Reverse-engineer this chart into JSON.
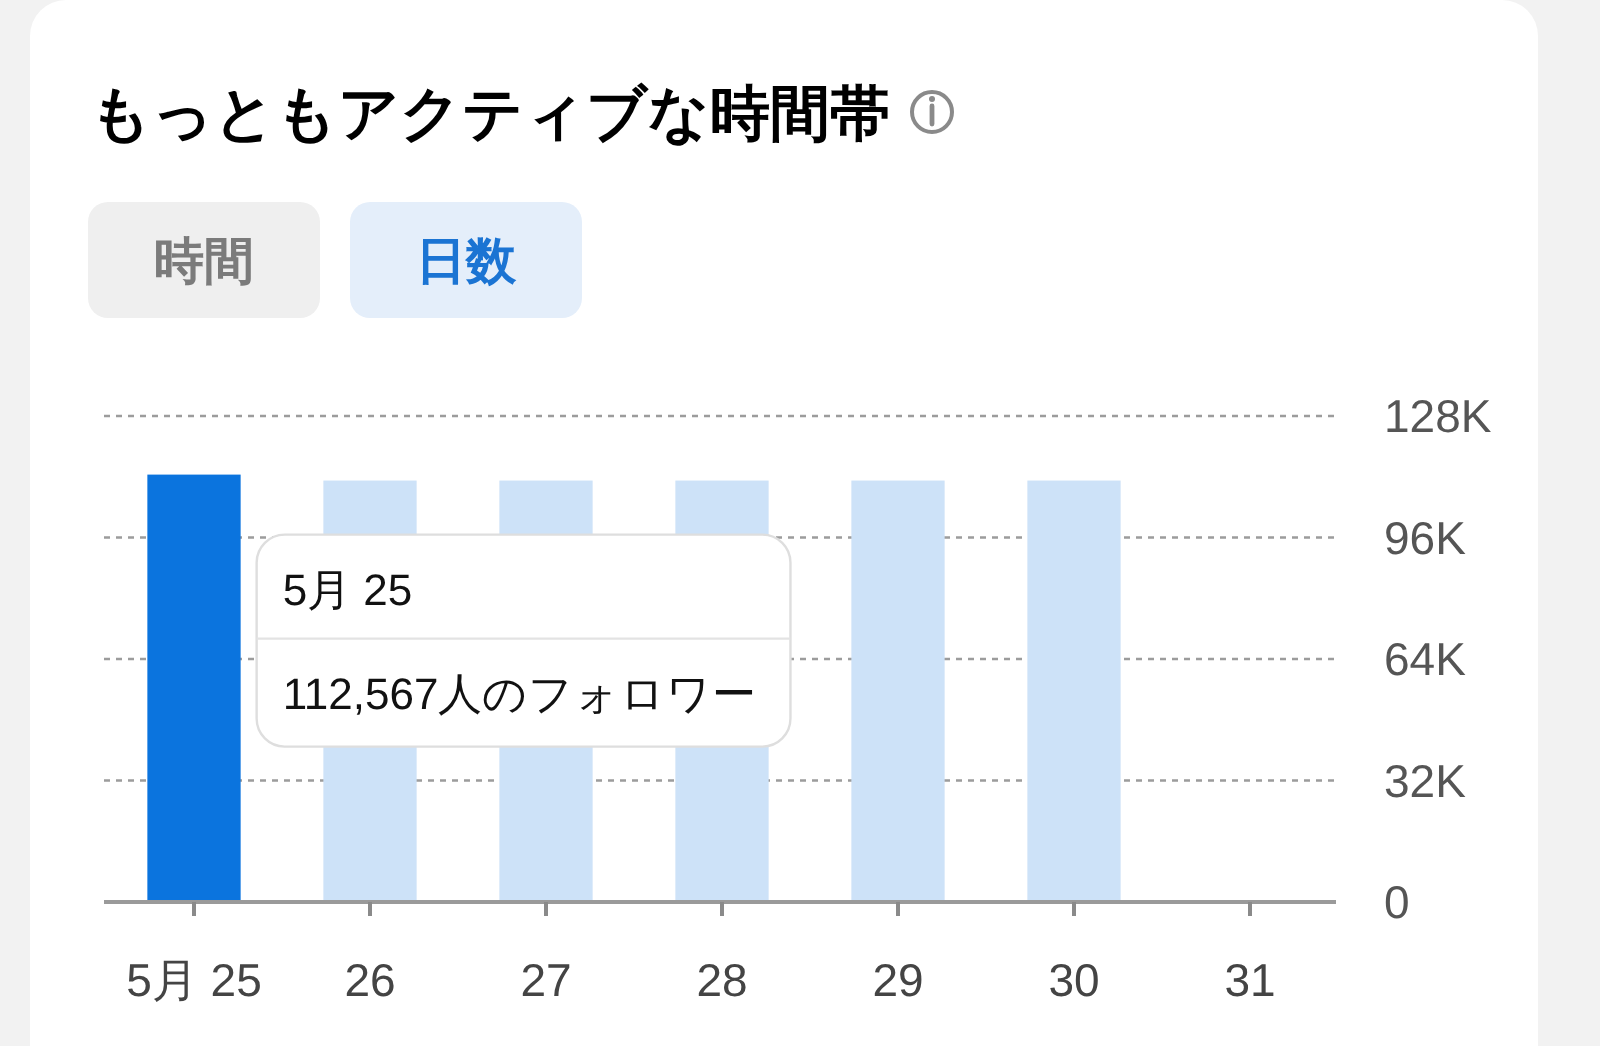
{
  "chart_data": {
    "type": "bar",
    "title": "もっともアクティブな時間帯",
    "categories": [
      "5月 25",
      "26",
      "27",
      "28",
      "29",
      "30",
      "31"
    ],
    "values": [
      112567,
      111000,
      111000,
      111000,
      111000,
      111000,
      null
    ],
    "colors": [
      "#0b74de",
      "#cde2f8",
      "#cde2f8",
      "#cde2f8",
      "#cde2f8",
      "#cde2f8",
      null
    ],
    "ylim": [
      0,
      128000
    ],
    "yticks": [
      0,
      {
        "value": 32000,
        "label": "32K"
      },
      {
        "value": 64000,
        "label": "64K"
      },
      {
        "value": 96000,
        "label": "96K"
      },
      {
        "value": 128000,
        "label": "128K"
      }
    ],
    "grid": "y",
    "annotations": [
      "時間",
      "日数",
      "5月 25",
      "112,567人のフォロワー"
    ]
  }
}
